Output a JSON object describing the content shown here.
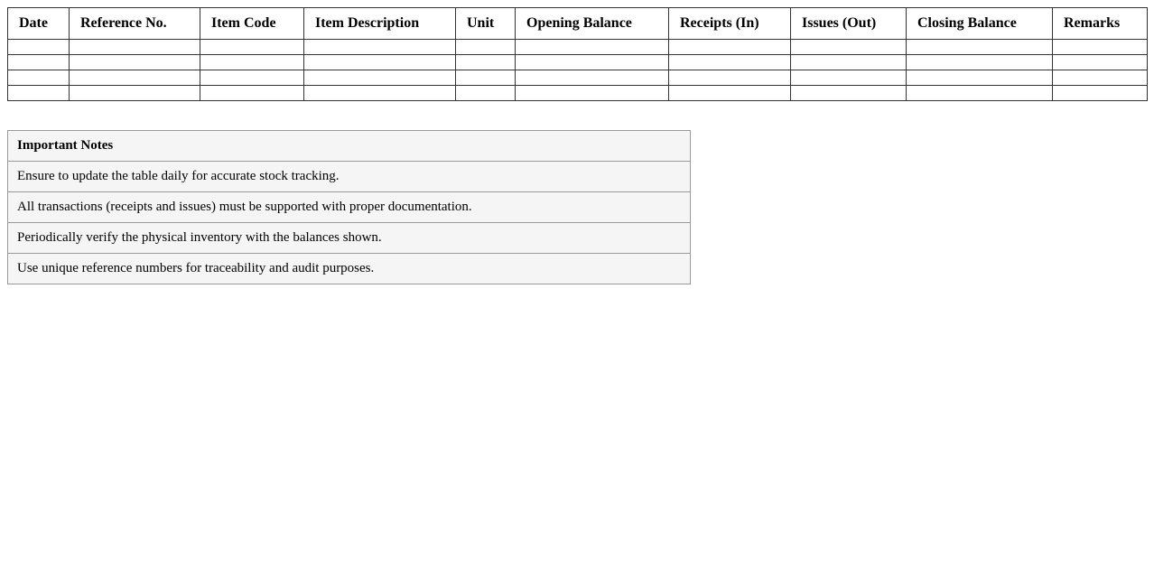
{
  "ledger": {
    "headers": [
      "Date",
      "Reference No.",
      "Item Code",
      "Item Description",
      "Unit",
      "Opening Balance",
      "Receipts (In)",
      "Issues (Out)",
      "Closing Balance",
      "Remarks"
    ],
    "empty_rows": 4
  },
  "notes": {
    "title": "Important Notes",
    "items": [
      "Ensure to update the table daily for accurate stock tracking.",
      "All transactions (receipts and issues) must be supported with proper documentation.",
      "Periodically verify the physical inventory with the balances shown.",
      "Use unique reference numbers for traceability and audit purposes."
    ]
  }
}
